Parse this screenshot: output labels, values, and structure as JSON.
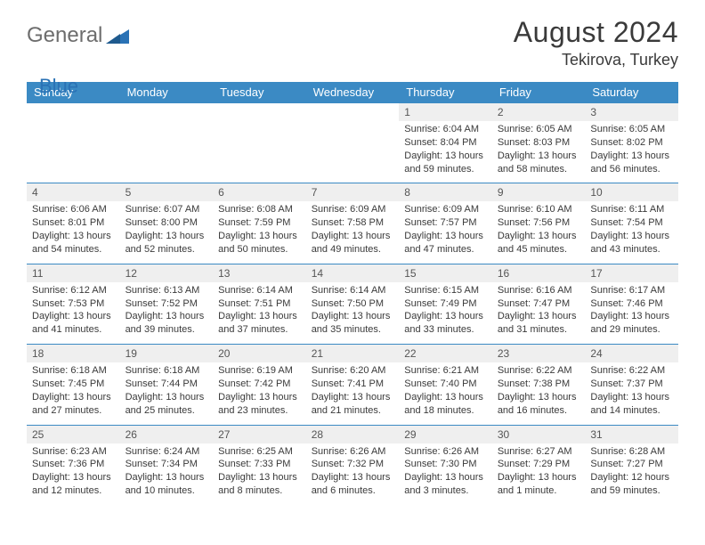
{
  "logo": {
    "main": "General",
    "accent": "Blue"
  },
  "header": {
    "title": "August 2024",
    "location": "Tekirova, Turkey"
  },
  "colors": {
    "headerBar": "#3b8ac4",
    "dayBg": "#efefef",
    "rule": "#3b8ac4",
    "text": "#3a3a3a",
    "logoGray": "#6d6d6d",
    "logoBlue": "#2a72b5"
  },
  "daysOfWeek": [
    "Sunday",
    "Monday",
    "Tuesday",
    "Wednesday",
    "Thursday",
    "Friday",
    "Saturday"
  ],
  "weeks": [
    [
      null,
      null,
      null,
      null,
      {
        "n": "1",
        "sr": "6:04 AM",
        "ss": "8:04 PM",
        "dl": "13 hours and 59 minutes."
      },
      {
        "n": "2",
        "sr": "6:05 AM",
        "ss": "8:03 PM",
        "dl": "13 hours and 58 minutes."
      },
      {
        "n": "3",
        "sr": "6:05 AM",
        "ss": "8:02 PM",
        "dl": "13 hours and 56 minutes."
      }
    ],
    [
      {
        "n": "4",
        "sr": "6:06 AM",
        "ss": "8:01 PM",
        "dl": "13 hours and 54 minutes."
      },
      {
        "n": "5",
        "sr": "6:07 AM",
        "ss": "8:00 PM",
        "dl": "13 hours and 52 minutes."
      },
      {
        "n": "6",
        "sr": "6:08 AM",
        "ss": "7:59 PM",
        "dl": "13 hours and 50 minutes."
      },
      {
        "n": "7",
        "sr": "6:09 AM",
        "ss": "7:58 PM",
        "dl": "13 hours and 49 minutes."
      },
      {
        "n": "8",
        "sr": "6:09 AM",
        "ss": "7:57 PM",
        "dl": "13 hours and 47 minutes."
      },
      {
        "n": "9",
        "sr": "6:10 AM",
        "ss": "7:56 PM",
        "dl": "13 hours and 45 minutes."
      },
      {
        "n": "10",
        "sr": "6:11 AM",
        "ss": "7:54 PM",
        "dl": "13 hours and 43 minutes."
      }
    ],
    [
      {
        "n": "11",
        "sr": "6:12 AM",
        "ss": "7:53 PM",
        "dl": "13 hours and 41 minutes."
      },
      {
        "n": "12",
        "sr": "6:13 AM",
        "ss": "7:52 PM",
        "dl": "13 hours and 39 minutes."
      },
      {
        "n": "13",
        "sr": "6:14 AM",
        "ss": "7:51 PM",
        "dl": "13 hours and 37 minutes."
      },
      {
        "n": "14",
        "sr": "6:14 AM",
        "ss": "7:50 PM",
        "dl": "13 hours and 35 minutes."
      },
      {
        "n": "15",
        "sr": "6:15 AM",
        "ss": "7:49 PM",
        "dl": "13 hours and 33 minutes."
      },
      {
        "n": "16",
        "sr": "6:16 AM",
        "ss": "7:47 PM",
        "dl": "13 hours and 31 minutes."
      },
      {
        "n": "17",
        "sr": "6:17 AM",
        "ss": "7:46 PM",
        "dl": "13 hours and 29 minutes."
      }
    ],
    [
      {
        "n": "18",
        "sr": "6:18 AM",
        "ss": "7:45 PM",
        "dl": "13 hours and 27 minutes."
      },
      {
        "n": "19",
        "sr": "6:18 AM",
        "ss": "7:44 PM",
        "dl": "13 hours and 25 minutes."
      },
      {
        "n": "20",
        "sr": "6:19 AM",
        "ss": "7:42 PM",
        "dl": "13 hours and 23 minutes."
      },
      {
        "n": "21",
        "sr": "6:20 AM",
        "ss": "7:41 PM",
        "dl": "13 hours and 21 minutes."
      },
      {
        "n": "22",
        "sr": "6:21 AM",
        "ss": "7:40 PM",
        "dl": "13 hours and 18 minutes."
      },
      {
        "n": "23",
        "sr": "6:22 AM",
        "ss": "7:38 PM",
        "dl": "13 hours and 16 minutes."
      },
      {
        "n": "24",
        "sr": "6:22 AM",
        "ss": "7:37 PM",
        "dl": "13 hours and 14 minutes."
      }
    ],
    [
      {
        "n": "25",
        "sr": "6:23 AM",
        "ss": "7:36 PM",
        "dl": "13 hours and 12 minutes."
      },
      {
        "n": "26",
        "sr": "6:24 AM",
        "ss": "7:34 PM",
        "dl": "13 hours and 10 minutes."
      },
      {
        "n": "27",
        "sr": "6:25 AM",
        "ss": "7:33 PM",
        "dl": "13 hours and 8 minutes."
      },
      {
        "n": "28",
        "sr": "6:26 AM",
        "ss": "7:32 PM",
        "dl": "13 hours and 6 minutes."
      },
      {
        "n": "29",
        "sr": "6:26 AM",
        "ss": "7:30 PM",
        "dl": "13 hours and 3 minutes."
      },
      {
        "n": "30",
        "sr": "6:27 AM",
        "ss": "7:29 PM",
        "dl": "13 hours and 1 minute."
      },
      {
        "n": "31",
        "sr": "6:28 AM",
        "ss": "7:27 PM",
        "dl": "12 hours and 59 minutes."
      }
    ]
  ],
  "labels": {
    "sunrise": "Sunrise:",
    "sunset": "Sunset:",
    "daylight": "Daylight:"
  }
}
